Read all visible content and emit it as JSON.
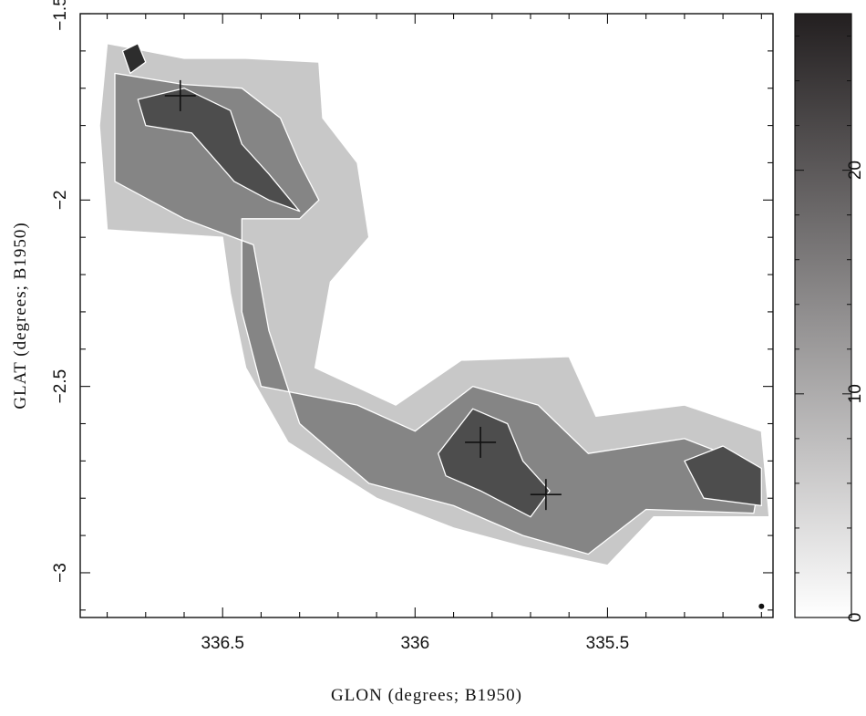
{
  "chart_data": {
    "type": "heatmap",
    "title": "",
    "xlabel": "GLON (degrees; B1950)",
    "ylabel": "GLAT (degrees; B1950)",
    "xlim": [
      336.87,
      335.07
    ],
    "ylim": [
      -3.12,
      -1.5
    ],
    "x_ticks": [
      {
        "value": 336.5,
        "label": "336.5"
      },
      {
        "value": 336.0,
        "label": "336"
      },
      {
        "value": 335.5,
        "label": "335.5"
      }
    ],
    "y_ticks": [
      {
        "value": -1.5,
        "label": "−1.5"
      },
      {
        "value": -2.0,
        "label": "−2"
      },
      {
        "value": -2.5,
        "label": "−2.5"
      },
      {
        "value": -3.0,
        "label": "−3"
      }
    ],
    "colorbar": {
      "range": [
        0,
        27
      ],
      "ticks": [
        {
          "value": 0,
          "label": "0"
        },
        {
          "value": 10,
          "label": "10"
        },
        {
          "value": 20,
          "label": "20"
        }
      ],
      "colors": [
        "#ffffff",
        "#231f20"
      ]
    },
    "contour_colors": {
      "fill_low": "#c8c8c8",
      "fill_mid": "#858585",
      "fill_high": "#4d4d4d",
      "fill_peak": "#2d2d2d",
      "line": "#ffffff"
    },
    "markers": [
      {
        "glon": 336.61,
        "glat": -1.72,
        "symbol": "cross"
      },
      {
        "glon": 335.83,
        "glat": -2.65,
        "symbol": "cross"
      },
      {
        "glon": 335.66,
        "glat": -2.79,
        "symbol": "cross"
      }
    ],
    "beam": {
      "glon": 335.1,
      "glat": -3.09
    },
    "regions": {
      "outer": [
        [
          336.8,
          -1.58
        ],
        [
          336.6,
          -1.62
        ],
        [
          336.44,
          -1.62
        ],
        [
          336.25,
          -1.63
        ],
        [
          336.24,
          -1.78
        ],
        [
          336.15,
          -1.9
        ],
        [
          336.12,
          -2.1
        ],
        [
          336.22,
          -2.22
        ],
        [
          336.26,
          -2.45
        ],
        [
          336.05,
          -2.55
        ],
        [
          335.88,
          -2.43
        ],
        [
          335.6,
          -2.42
        ],
        [
          335.53,
          -2.58
        ],
        [
          335.3,
          -2.55
        ],
        [
          335.1,
          -2.62
        ],
        [
          335.08,
          -2.85
        ],
        [
          335.38,
          -2.85
        ],
        [
          335.5,
          -2.98
        ],
        [
          335.72,
          -2.93
        ],
        [
          335.9,
          -2.88
        ],
        [
          336.1,
          -2.8
        ],
        [
          336.33,
          -2.65
        ],
        [
          336.44,
          -2.45
        ],
        [
          336.48,
          -2.25
        ],
        [
          336.5,
          -2.1
        ],
        [
          336.8,
          -2.08
        ],
        [
          336.82,
          -1.8
        ]
      ],
      "mid": [
        [
          336.78,
          -1.66
        ],
        [
          336.6,
          -1.69
        ],
        [
          336.45,
          -1.7
        ],
        [
          336.35,
          -1.78
        ],
        [
          336.3,
          -1.9
        ],
        [
          336.25,
          -2.0
        ],
        [
          336.3,
          -2.05
        ],
        [
          336.45,
          -2.05
        ],
        [
          336.45,
          -2.3
        ],
        [
          336.4,
          -2.5
        ],
        [
          336.15,
          -2.55
        ],
        [
          336.0,
          -2.62
        ],
        [
          335.85,
          -2.5
        ],
        [
          335.68,
          -2.55
        ],
        [
          335.55,
          -2.68
        ],
        [
          335.3,
          -2.64
        ],
        [
          335.1,
          -2.72
        ],
        [
          335.12,
          -2.84
        ],
        [
          335.4,
          -2.83
        ],
        [
          335.55,
          -2.95
        ],
        [
          335.72,
          -2.9
        ],
        [
          335.9,
          -2.82
        ],
        [
          336.12,
          -2.76
        ],
        [
          336.3,
          -2.6
        ],
        [
          336.38,
          -2.35
        ],
        [
          336.42,
          -2.12
        ],
        [
          336.6,
          -2.05
        ],
        [
          336.78,
          -1.95
        ]
      ],
      "high": [
        [
          336.72,
          -1.73
        ],
        [
          336.6,
          -1.7
        ],
        [
          336.48,
          -1.76
        ],
        [
          336.45,
          -1.85
        ],
        [
          336.38,
          -1.93
        ],
        [
          336.3,
          -2.03
        ],
        [
          336.38,
          -2.0
        ],
        [
          336.47,
          -1.95
        ],
        [
          336.58,
          -1.82
        ],
        [
          336.7,
          -1.8
        ]
      ],
      "high2": [
        [
          335.94,
          -2.68
        ],
        [
          335.85,
          -2.56
        ],
        [
          335.76,
          -2.6
        ],
        [
          335.72,
          -2.7
        ],
        [
          335.65,
          -2.78
        ],
        [
          335.7,
          -2.85
        ],
        [
          335.83,
          -2.78
        ],
        [
          335.92,
          -2.74
        ]
      ],
      "high3": [
        [
          335.3,
          -2.7
        ],
        [
          335.2,
          -2.66
        ],
        [
          335.1,
          -2.72
        ],
        [
          335.1,
          -2.82
        ],
        [
          335.25,
          -2.8
        ]
      ],
      "peak": [
        [
          336.76,
          -1.6
        ],
        [
          336.72,
          -1.58
        ],
        [
          336.7,
          -1.63
        ],
        [
          336.74,
          -1.66
        ]
      ]
    }
  }
}
